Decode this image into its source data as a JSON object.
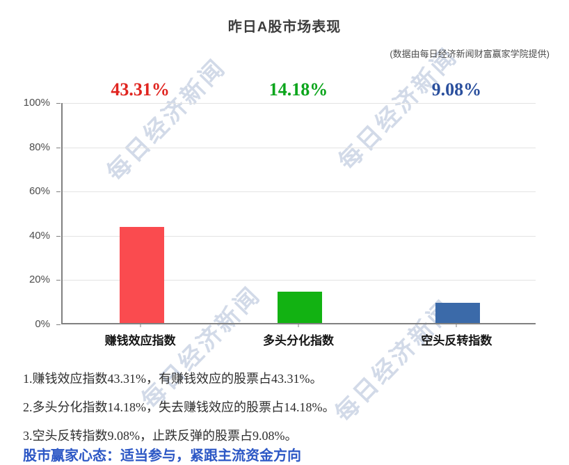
{
  "page": {
    "title": "昨日A股市场表现",
    "subtitle": "(数据由每日经济新闻财富赢家学院提供)",
    "watermark_text": "每日经济新闻",
    "notes": [
      "1.赚钱效应指数43.31%，有赚钱效应的股票占43.31%。",
      "2.多头分化指数14.18%，失去赚钱效应的股票占14.18%。",
      "3.空头反转指数9.08%，止跌反弹的股票占9.08%。"
    ],
    "footer": "股市赢家心态：适当参与，紧跟主流资金方向"
  },
  "colors": {
    "bar_red": "#fa4b4f",
    "bar_green": "#12b212",
    "bar_blue": "#3b6aa9",
    "value_label_red": "#e02520",
    "value_label_green": "#0ba51b",
    "value_label_blue": "#2a4f9d",
    "footer_blue": "#2c57c5",
    "watermark": "#c7d1e3",
    "gridline": "#e3e3e3",
    "axis": "#808080"
  },
  "chart_data": {
    "type": "bar",
    "title": "昨日A股市场表现",
    "subtitle": "(数据由每日经济新闻财富赢家学院提供)",
    "categories": [
      "赚钱效应指数",
      "多头分化指数",
      "空头反转指数"
    ],
    "values": [
      43.31,
      14.18,
      9.08
    ],
    "value_labels": [
      "43.31%",
      "14.18%",
      "9.08%"
    ],
    "bar_colors": [
      "#fa4b4f",
      "#12b212",
      "#3b6aa9"
    ],
    "value_label_colors": [
      "#e02520",
      "#0ba51b",
      "#2a4f9d"
    ],
    "xlabel": "",
    "ylabel": "",
    "ylim": [
      0,
      100
    ],
    "y_ticks": [
      "100%",
      "80%",
      "60%",
      "40%",
      "20%",
      "0%"
    ],
    "grid": true,
    "legend": "none",
    "unit": "%"
  }
}
